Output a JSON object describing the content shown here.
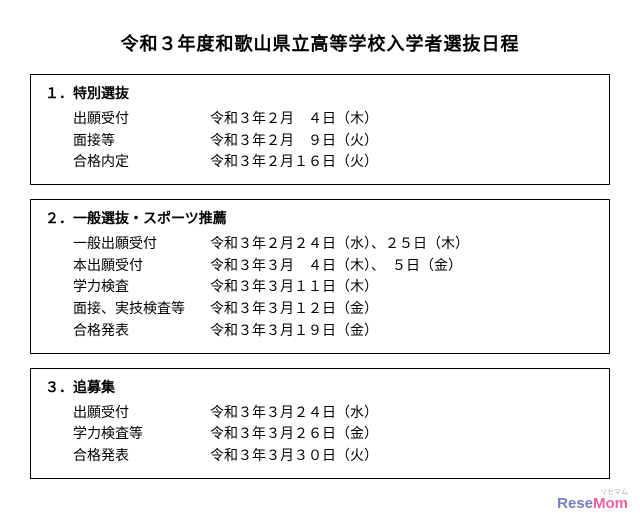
{
  "title": "令和３年度和歌山県立高等学校入学者選抜日程",
  "sections": [
    {
      "heading": "１．特別選抜",
      "rows": [
        {
          "label": "出願受付",
          "date": "令和３年２月　４日（木）"
        },
        {
          "label": "面接等",
          "date": "令和３年２月　９日（火）"
        },
        {
          "label": "合格内定",
          "date": "令和３年２月１６日（火）"
        }
      ]
    },
    {
      "heading": "２．一般選抜・スポーツ推薦",
      "rows": [
        {
          "label": "一般出願受付",
          "date": "令和３年２月２４日（水）、２５日（木）"
        },
        {
          "label": "本出願受付",
          "date": "令和３年３月　４日（木）、　５日（金）"
        },
        {
          "label": "学力検査",
          "date": "令和３年３月１１日（木）"
        },
        {
          "label": "面接、実技検査等",
          "date": "令和３年３月１２日（金）"
        },
        {
          "label": "合格発表",
          "date": "令和３年３月１９日（金）"
        }
      ]
    },
    {
      "heading": "３．追募集",
      "rows": [
        {
          "label": "出願受付",
          "date": "令和３年３月２４日（水）"
        },
        {
          "label": "学力検査等",
          "date": "令和３年３月２６日（金）"
        },
        {
          "label": "合格発表",
          "date": "令和３年３月３０日（火）"
        }
      ]
    }
  ],
  "watermark": {
    "furigana": "リセマム",
    "rese": "Rese",
    "mom": "Mom"
  },
  "colors": {
    "text": "#000000",
    "bg": "#ffffff",
    "wm_blue": "#3a4aa0",
    "wm_pink": "#e91e78"
  },
  "typography": {
    "title_size": 18,
    "heading_size": 14,
    "body_size": 14
  }
}
